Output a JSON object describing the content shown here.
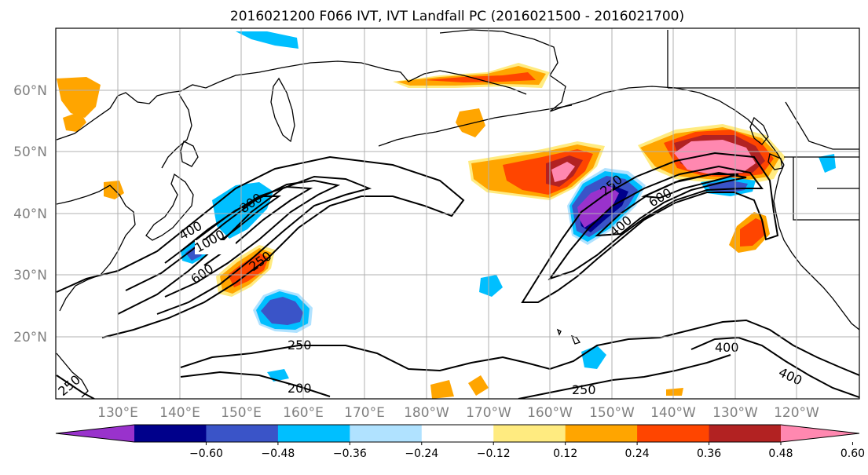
{
  "title": "2016021200 F066 IVT, IVT Landfall PC (2016021500 - 2016021700)",
  "lat_labels": [
    "60°N",
    "50°N",
    "40°N",
    "30°N",
    "20°N"
  ],
  "lon_labels": [
    "130°E",
    "140°E",
    "150°E",
    "160°E",
    "170°E",
    "180°W",
    "170°W",
    "160°W",
    "150°W",
    "140°W",
    "130°W",
    "120°W"
  ],
  "colorbar": {
    "tick_labels": [
      "−0.60",
      "−0.48",
      "−0.36",
      "−0.24",
      "−0.12",
      "0.12",
      "0.24",
      "0.36",
      "0.48",
      "0.60"
    ],
    "colors": [
      "#9932CC",
      "#00008B",
      "#3A54C8",
      "#00BFFF",
      "#B0E2FF",
      "#FFFFFF",
      "#FFEB80",
      "#FFA500",
      "#FF4500",
      "#B22222",
      "#FF88B0"
    ]
  },
  "contour_labels": [
    "1000",
    "800",
    "600",
    "400",
    "250",
    "400",
    "250",
    "400",
    "400",
    "600",
    "250",
    "200",
    "250",
    "250"
  ],
  "colors": {
    "land_outline": "#000000",
    "grid": "#b0b0b0",
    "contour": "#000000",
    "axis_label": "#808080"
  }
}
